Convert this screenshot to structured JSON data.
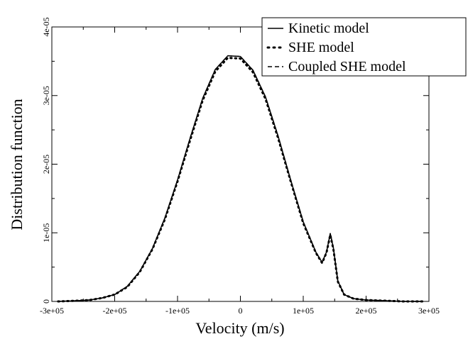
{
  "chart_data": {
    "type": "line",
    "xlabel": "Velocity (m/s)",
    "ylabel": "Distribution function",
    "xlim": [
      -300000,
      300000
    ],
    "ylim": [
      0,
      4e-05
    ],
    "xticks": [
      -300000,
      -200000,
      -100000,
      0,
      100000,
      200000,
      300000
    ],
    "xtick_labels": [
      "-3e+05",
      "-2e+05",
      "-1e+05",
      "0",
      "1e+05",
      "2e+05",
      "3e+05"
    ],
    "yticks": [
      0,
      1e-05,
      2e-05,
      3e-05,
      4e-05
    ],
    "ytick_labels": [
      "0",
      "1e-05",
      "2e-05",
      "3e-05",
      "4e-05"
    ],
    "grid": false,
    "legend_position": "top-right",
    "series": [
      {
        "name": "Kinetic model",
        "line_style": "solid",
        "x": [
          -290000,
          -260000,
          -240000,
          -220000,
          -200000,
          -180000,
          -160000,
          -140000,
          -120000,
          -100000,
          -80000,
          -60000,
          -40000,
          -20000,
          0,
          20000,
          40000,
          60000,
          80000,
          100000,
          120000,
          130000,
          137000,
          143000,
          148000,
          155000,
          165000,
          180000,
          200000,
          230000,
          260000,
          290000
        ],
        "y": [
          0,
          1e-07,
          2e-07,
          5e-07,
          1e-06,
          2.2e-06,
          4.4e-06,
          7.7e-06,
          1.22e-05,
          1.77e-05,
          2.38e-05,
          2.96e-05,
          3.38e-05,
          3.58e-05,
          3.57e-05,
          3.37e-05,
          2.98e-05,
          2.41e-05,
          1.77e-05,
          1.16e-05,
          7.2e-06,
          5.7e-06,
          7.2e-06,
          9.9e-06,
          7.8e-06,
          3e-06,
          1e-06,
          4e-07,
          2e-07,
          1e-07,
          0,
          0
        ]
      },
      {
        "name": "SHE model",
        "line_style": "dotted",
        "x": [
          -290000,
          -260000,
          -240000,
          -220000,
          -200000,
          -180000,
          -160000,
          -140000,
          -120000,
          -100000,
          -80000,
          -60000,
          -40000,
          -20000,
          0,
          20000,
          40000,
          60000,
          80000,
          100000,
          120000,
          130000,
          137000,
          143000,
          148000,
          155000,
          165000,
          180000,
          200000,
          230000,
          260000,
          290000
        ],
        "y": [
          0,
          1e-07,
          2e-07,
          5e-07,
          1e-06,
          2.1e-06,
          4.3e-06,
          7.6e-06,
          1.2e-05,
          1.75e-05,
          2.35e-05,
          2.93e-05,
          3.35e-05,
          3.55e-05,
          3.54e-05,
          3.34e-05,
          2.95e-05,
          2.38e-05,
          1.75e-05,
          1.14e-05,
          7.1e-06,
          5.6e-06,
          7.1e-06,
          9.7e-06,
          7.6e-06,
          2.9e-06,
          1e-06,
          4e-07,
          2e-07,
          1e-07,
          0,
          0
        ]
      },
      {
        "name": "Coupled SHE model",
        "line_style": "dashed",
        "x": [
          -290000,
          -260000,
          -240000,
          -220000,
          -200000,
          -180000,
          -160000,
          -140000,
          -120000,
          -100000,
          -80000,
          -60000,
          -40000,
          -20000,
          0,
          20000,
          40000,
          60000,
          80000,
          100000,
          120000,
          130000,
          137000,
          143000,
          148000,
          155000,
          165000,
          180000,
          200000,
          230000,
          260000,
          290000
        ],
        "y": [
          0,
          1e-07,
          2e-07,
          5e-07,
          1e-06,
          2.2e-06,
          4.4e-06,
          7.7e-06,
          1.22e-05,
          1.77e-05,
          2.38e-05,
          2.96e-05,
          3.38e-05,
          3.58e-05,
          3.57e-05,
          3.37e-05,
          2.98e-05,
          2.41e-05,
          1.77e-05,
          1.16e-05,
          7.2e-06,
          5.7e-06,
          7.2e-06,
          9.9e-06,
          7.8e-06,
          3e-06,
          1e-06,
          4e-07,
          2e-07,
          1e-07,
          0,
          0
        ]
      }
    ]
  }
}
